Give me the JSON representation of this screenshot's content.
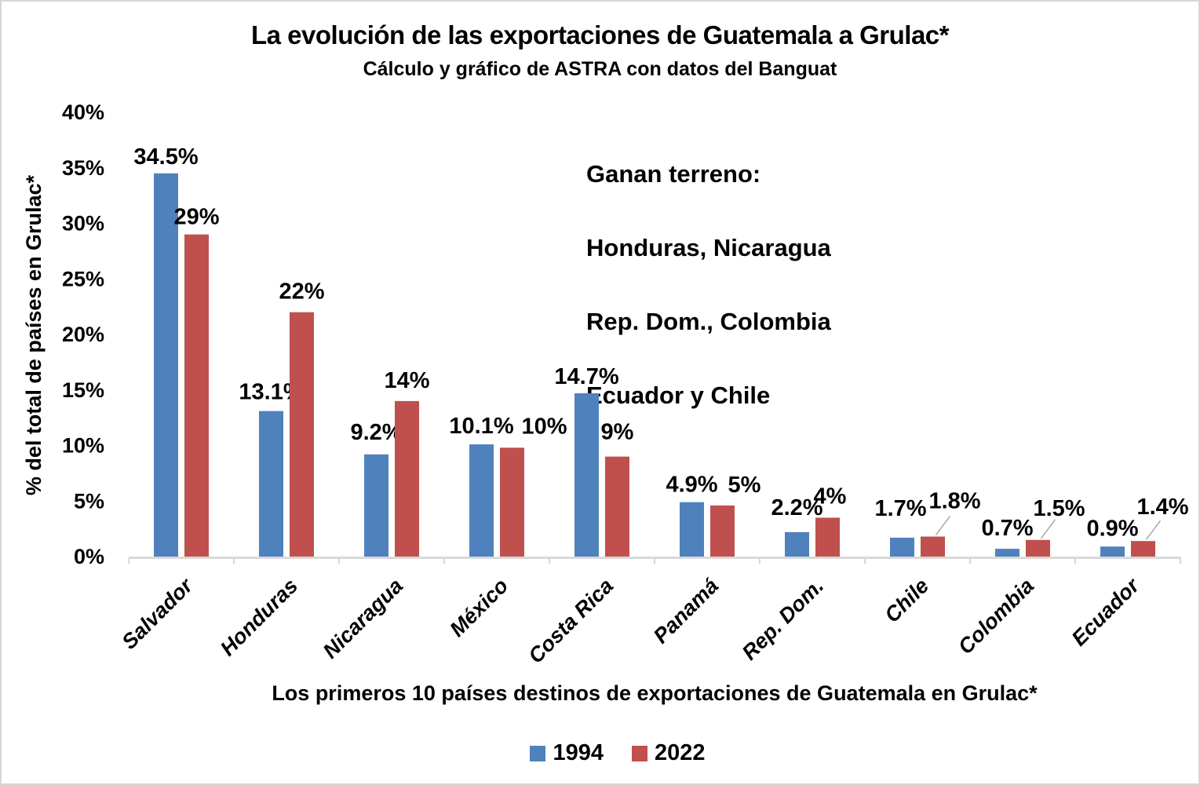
{
  "chart_data": {
    "type": "bar",
    "title": "La evolución de las exportaciones de Guatemala a Grulac*",
    "subtitle": "Cálculo y gráfico de ASTRA con datos del Banguat",
    "ylabel": "% del total de países en Grulac*",
    "xlabel": "Los primeros 10 países destinos de exportaciones de Guatemala en Grulac*",
    "categories": [
      "Salvador",
      "Honduras",
      "Nicaragua",
      "México",
      "Costa Rica",
      "Panamá",
      "Rep. Dom.",
      "Chile",
      "Colombia",
      "Ecuador"
    ],
    "series": [
      {
        "name": "1994",
        "color": "#4F81BD",
        "values": [
          34.5,
          13.1,
          9.2,
          10.1,
          14.7,
          4.9,
          2.2,
          1.7,
          0.7,
          0.9
        ],
        "labels": [
          "34.5%",
          "13.1%",
          "9.2%",
          "10.1%",
          "14.7%",
          "4.9%",
          "2.2%",
          "1.7%",
          "0.7%",
          "0.9%"
        ]
      },
      {
        "name": "2022",
        "color": "#C0504D",
        "values": [
          29.0,
          22.0,
          14.0,
          9.8,
          9.0,
          4.6,
          3.5,
          1.8,
          1.5,
          1.4
        ],
        "labels": [
          "29%",
          "22%",
          "14%",
          "10%",
          "9%",
          "5%",
          "4%",
          "1.8%",
          "1.5%",
          "1.4%"
        ]
      }
    ],
    "ylim": [
      0,
      40
    ],
    "yticks": [
      "0%",
      "5%",
      "10%",
      "15%",
      "20%",
      "25%",
      "30%",
      "35%",
      "40%"
    ],
    "grid": false,
    "legend_position": "bottom",
    "axis_color": "#D9D9D9",
    "leader_line_color": "#A6A6A6",
    "annotation": {
      "0": "Ganan terreno:",
      "1": "Honduras, Nicaragua",
      "2": "Rep. Dom., Colombia",
      "3": "Ecuador y Chile"
    }
  }
}
